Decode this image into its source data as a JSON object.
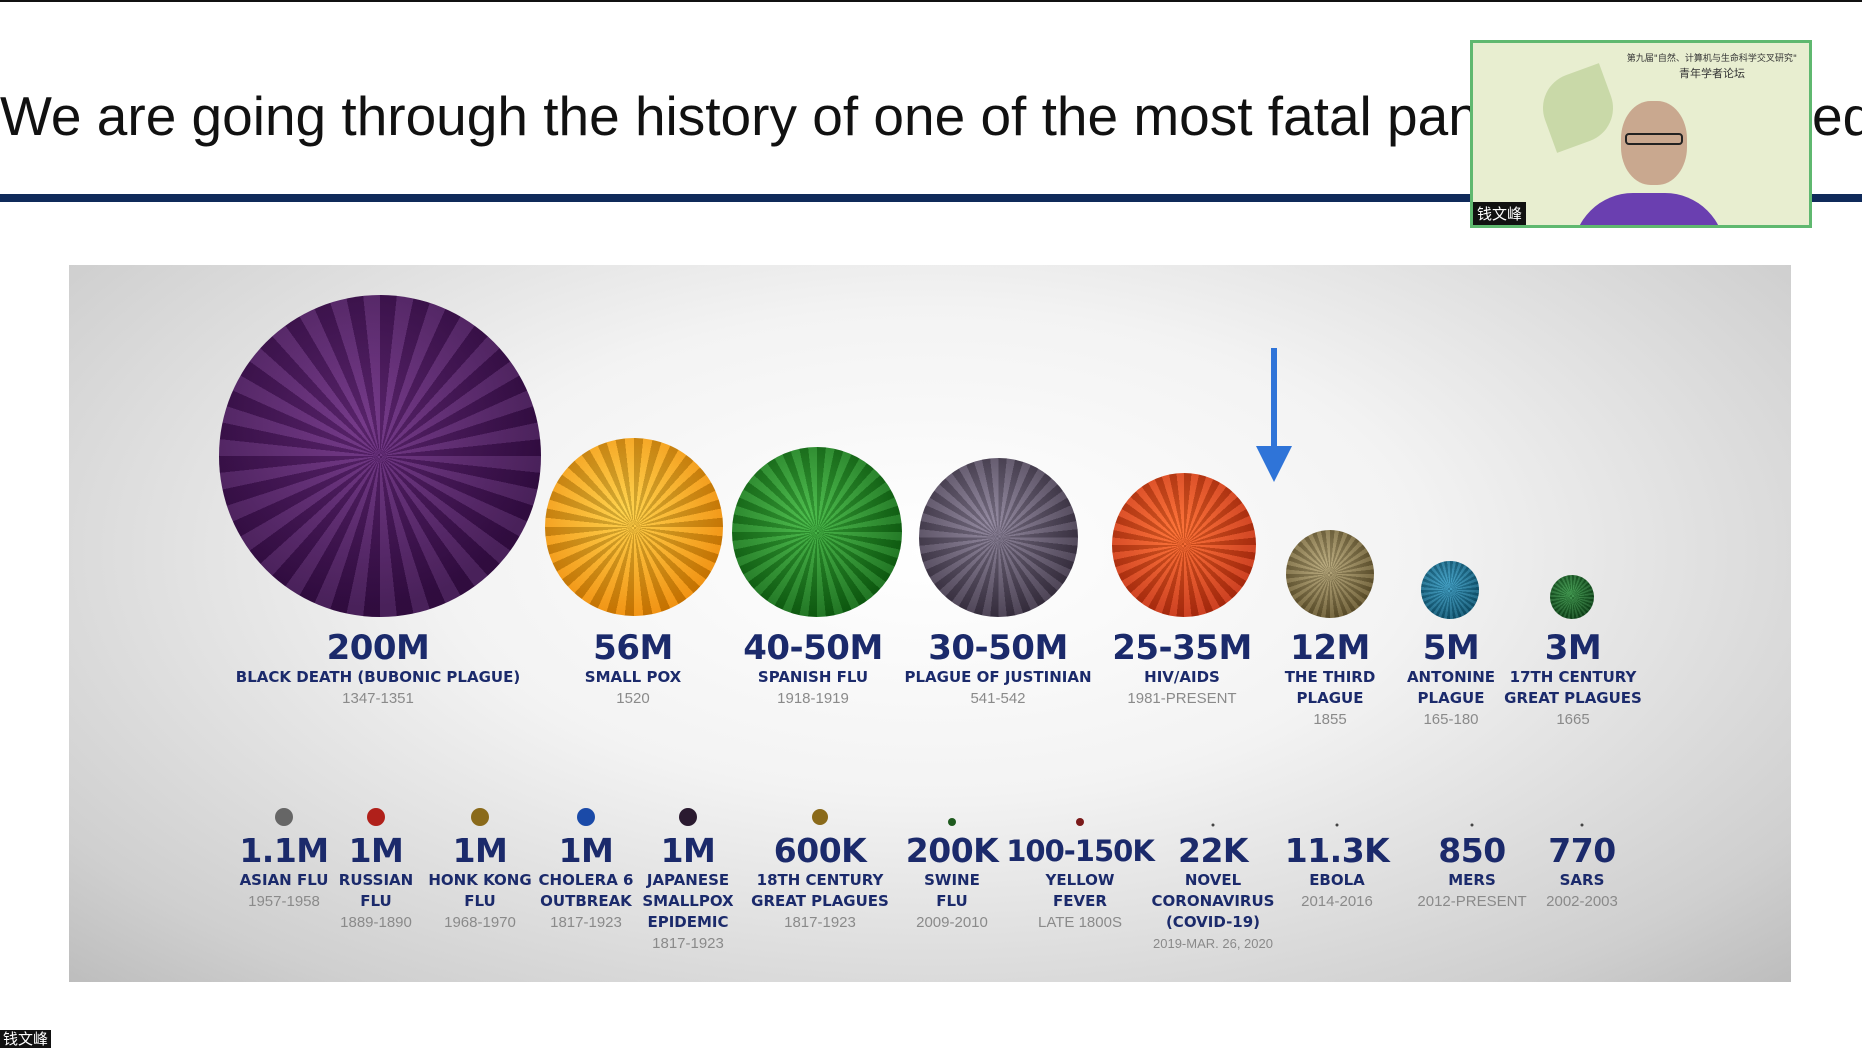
{
  "slide": {
    "title": "We are going through the history of one of the most fatal pandemics ever recorded",
    "visible_title_start": "We are going through the history of one of the most fatal panc",
    "visible_title_end": "ed"
  },
  "video_tile": {
    "participant_name": "钱文峰",
    "background_header_line1": "第九届\"自然、计算机与生命科学交叉研究\"",
    "background_header_line2": "青年学者论坛"
  },
  "corner_label": "钱文峰",
  "pandemics_major": [
    {
      "deaths": "200M",
      "name": [
        "BLACK DEATH (BUBONIC PLAGUE)"
      ],
      "years": "1347-1351",
      "color": "#4a1a5c"
    },
    {
      "deaths": "56M",
      "name": [
        "SMALL POX"
      ],
      "years": "1520",
      "color": "#f5a40f"
    },
    {
      "deaths": "40-50M",
      "name": [
        "SPANISH FLU"
      ],
      "years": "1918-1919",
      "color": "#1f8a1f"
    },
    {
      "deaths": "30-50M",
      "name": [
        "PLAGUE OF JUSTINIAN"
      ],
      "years": "541-542",
      "color": "#5e5468"
    },
    {
      "deaths": "25-35M",
      "name": [
        "HIV/AIDS"
      ],
      "years": "1981-PRESENT",
      "color": "#e0461b"
    },
    {
      "deaths": "12M",
      "name": [
        "THE THIRD",
        "PLAGUE"
      ],
      "years": "1855",
      "color": "#8a7a4a"
    },
    {
      "deaths": "5M",
      "name": [
        "ANTONINE",
        "PLAGUE"
      ],
      "years": "165-180",
      "color": "#1f7c9c"
    },
    {
      "deaths": "3M",
      "name": [
        "17TH CENTURY",
        "GREAT PLAGUES"
      ],
      "years": "1665",
      "color": "#1e6b2a"
    }
  ],
  "pandemics_minor": [
    {
      "deaths": "1.1M",
      "name": [
        "ASIAN FLU"
      ],
      "years": "1957-1958",
      "color": "#666666"
    },
    {
      "deaths": "1M",
      "name": [
        "RUSSIAN",
        "FLU"
      ],
      "years": "1889-1890",
      "color": "#b0201a"
    },
    {
      "deaths": "1M",
      "name": [
        "HONK KONG",
        "FLU"
      ],
      "years": "1968-1970",
      "color": "#8a6a1a"
    },
    {
      "deaths": "1M",
      "name": [
        "CHOLERA 6",
        "OUTBREAK"
      ],
      "years": "1817-1923",
      "color": "#1a4aa8"
    },
    {
      "deaths": "1M",
      "name": [
        "JAPANESE",
        "SMALLPOX",
        "EPIDEMIC"
      ],
      "years": "1817-1923",
      "color": "#2a1a30"
    },
    {
      "deaths": "600K",
      "name": [
        "18TH CENTURY",
        "GREAT PLAGUES"
      ],
      "years": "1817-1923",
      "color": "#8a6a1a"
    },
    {
      "deaths": "200K",
      "name": [
        "SWINE",
        "FLU"
      ],
      "years": "2009-2010",
      "color": "#1e5a1e"
    },
    {
      "deaths": "100-150K",
      "name": [
        "YELLOW",
        "FEVER"
      ],
      "years": "LATE 1800S",
      "color": "#7a1a1a"
    },
    {
      "deaths": "22K",
      "name": [
        "NOVEL",
        "CORONAVIRUS",
        "(COVID-19)"
      ],
      "years": "2019-MAR. 26, 2020",
      "color": "#444444"
    },
    {
      "deaths": "11.3K",
      "name": [
        "EBOLA"
      ],
      "years": "2014-2016",
      "color": "#444444"
    },
    {
      "deaths": "850",
      "name": [
        "MERS"
      ],
      "years": "2012-PRESENT",
      "color": "#444444"
    },
    {
      "deaths": "770",
      "name": [
        "SARS"
      ],
      "years": "2002-2003",
      "color": "#444444"
    }
  ]
}
